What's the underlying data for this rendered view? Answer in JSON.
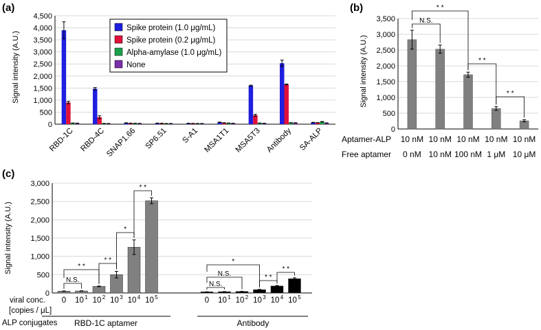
{
  "chart_data": [
    {
      "panel": "(a)",
      "type": "bar",
      "ylabel": "Signal intensity (A.U.)",
      "ylim": [
        0,
        4500
      ],
      "yticks": [
        "0",
        "500",
        "1,000",
        "1,500",
        "2,000",
        "2,500",
        "3,000",
        "3,500",
        "4,000",
        "4,500"
      ],
      "categories": [
        "RBD-1C",
        "RBD-4C",
        "SNAP1.66",
        "SP6.51",
        "S-A1",
        "MSA1T1",
        "MSA5T3",
        "Antibody",
        "SA-ALP"
      ],
      "legend_position": "top-center",
      "series": [
        {
          "name": "Spike protein (1.0 μg/mL)",
          "color": "#1f1fe0",
          "values": [
            3900,
            1470,
            50,
            40,
            35,
            80,
            1600,
            2530,
            70
          ],
          "errors": [
            350,
            50,
            8,
            6,
            6,
            8,
            20,
            130,
            8
          ]
        },
        {
          "name": "Spike protein (0.2 μg/mL)",
          "color": "#e0103a",
          "values": [
            900,
            290,
            40,
            35,
            30,
            55,
            370,
            1650,
            60
          ],
          "errors": [
            50,
            60,
            6,
            6,
            5,
            6,
            40,
            20,
            6
          ]
        },
        {
          "name": "Alpha-amylase (1.0 μg/mL)",
          "color": "#1aa04a",
          "values": [
            45,
            30,
            35,
            25,
            25,
            45,
            45,
            60,
            100
          ],
          "errors": [
            5,
            5,
            5,
            5,
            5,
            5,
            5,
            5,
            10
          ]
        },
        {
          "name": "None",
          "color": "#7a2ea8",
          "values": [
            40,
            25,
            30,
            25,
            25,
            35,
            35,
            55,
            50
          ],
          "errors": [
            5,
            5,
            5,
            5,
            5,
            5,
            5,
            5,
            5
          ]
        }
      ]
    },
    {
      "panel": "(b)",
      "type": "bar",
      "ylabel": "Signal intensity (A.U.)",
      "ylim": [
        0,
        3500
      ],
      "yticks": [
        "0",
        "500",
        "1,000",
        "1,500",
        "2,000",
        "2,500",
        "3,000",
        "3,500"
      ],
      "bar_color": "#808080",
      "values": [
        2830,
        2530,
        1720,
        650,
        260
      ],
      "errors": [
        300,
        130,
        80,
        60,
        35
      ],
      "row_labels": [
        "Aptamer-ALP",
        "Free aptamer"
      ],
      "row1": [
        "10 nM",
        "10 nM",
        "10 nM",
        "10 nM",
        "10 nM"
      ],
      "row2": [
        "0 nM",
        "10 nM",
        "100 nM",
        "1 μM",
        "10 μM"
      ],
      "annotations": [
        "N.S.",
        "* *",
        "* *",
        "* *"
      ]
    },
    {
      "panel": "(c)",
      "type": "bar",
      "ylabel": "Signal intensity (A.U.)",
      "ylim": [
        0,
        3000
      ],
      "yticks": [
        "0",
        "500",
        "1,000",
        "1,500",
        "2,000",
        "2,500",
        "3,000"
      ],
      "row_labels": [
        "viral conc.",
        "[copies / μL]",
        "ALP conjugates"
      ],
      "exponents": [
        "1",
        "2",
        "3",
        "4",
        "5"
      ],
      "groups": [
        {
          "name": "RBD-1C aptamer",
          "color": "#808080",
          "values": [
            50,
            55,
            180,
            500,
            1250,
            2520
          ],
          "errors": [
            5,
            5,
            10,
            90,
            200,
            80
          ]
        },
        {
          "name": "Antibody",
          "color": "#000000",
          "values": [
            30,
            35,
            40,
            90,
            190,
            390
          ],
          "errors": [
            3,
            3,
            4,
            8,
            15,
            25
          ]
        }
      ],
      "annotations": [
        "N.S.",
        "* *",
        "* *",
        "*",
        "* *",
        "*",
        "N.S.",
        "N.S.",
        "* *",
        "* *"
      ]
    }
  ]
}
